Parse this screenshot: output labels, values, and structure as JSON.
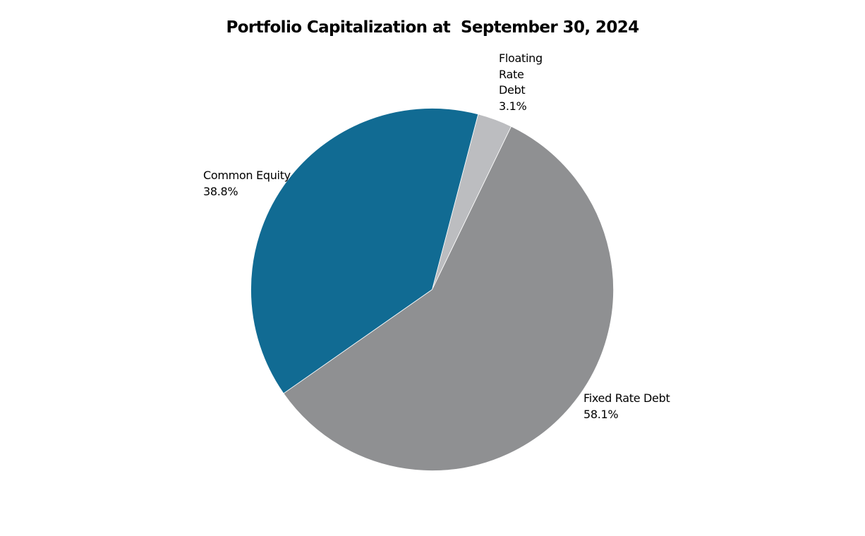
{
  "chart_data": {
    "type": "pie",
    "title": "Portfolio Capitalization at  September 30, 2024",
    "categories": [
      "Floating Rate Debt",
      "Fixed Rate Debt",
      "Common Equity"
    ],
    "values": [
      3.1,
      58.1,
      38.8
    ],
    "unit": "%",
    "colors": [
      "#bcbdc0",
      "#8f9092",
      "#116b93"
    ],
    "start_angle_deg_clockwise_from_top": 14.7,
    "legend": "none (data labels beside slices)",
    "labels": [
      {
        "lines": [
          "Floating",
          "Rate",
          "Debt",
          "3.1%"
        ]
      },
      {
        "lines": [
          "Fixed Rate Debt",
          "58.1%"
        ]
      },
      {
        "lines": [
          "Common Equity",
          "38.8%"
        ]
      }
    ]
  }
}
